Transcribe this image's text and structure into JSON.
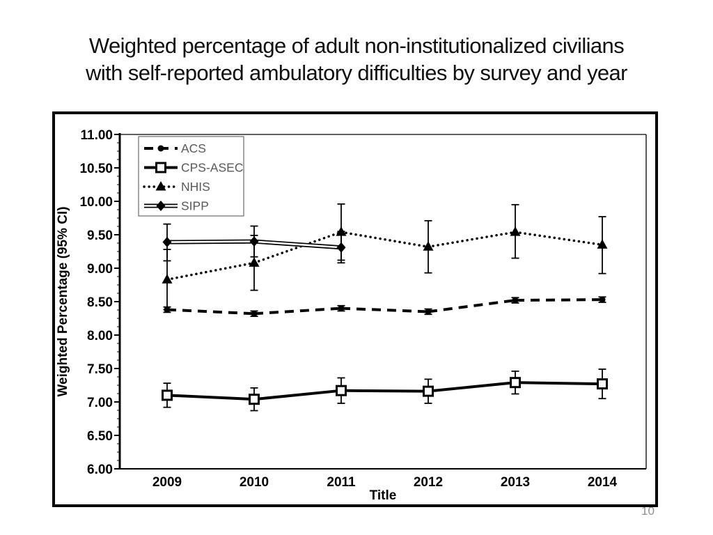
{
  "slide": {
    "title_line1": "Weighted percentage of adult non-institutionalized civilians",
    "title_line2": "with self-reported ambulatory difficulties by survey and year",
    "page_number": "10"
  },
  "chart_data": {
    "type": "line",
    "title": "",
    "xlabel": "Title",
    "ylabel": "Weighted Percentage (95% CI)",
    "categories": [
      "2009",
      "2010",
      "2011",
      "2012",
      "2013",
      "2014"
    ],
    "ylim": [
      6.0,
      11.0
    ],
    "ytick_major_step": 0.5,
    "ytick_minor_step": 0.125,
    "ytick_label_format_decimals": 2,
    "grid": false,
    "legend_position": "top-left-inside",
    "colors": {
      "line": "#000000",
      "legend_text": "#595959",
      "legend_border": "#7f7f7f"
    },
    "series": [
      {
        "name": "ACS",
        "line_style": "dashed",
        "marker": "circle",
        "values": [
          8.38,
          8.32,
          8.4,
          8.35,
          8.52,
          8.53
        ],
        "ci_low": [
          8.34,
          8.28,
          8.36,
          8.31,
          8.48,
          8.49
        ],
        "ci_high": [
          8.42,
          8.36,
          8.44,
          8.39,
          8.56,
          8.57
        ]
      },
      {
        "name": "CPS-ASEC",
        "line_style": "solid",
        "marker": "open-square",
        "values": [
          7.1,
          7.04,
          7.17,
          7.16,
          7.29,
          7.27
        ],
        "ci_low": [
          6.92,
          6.87,
          6.98,
          6.98,
          7.12,
          7.05
        ],
        "ci_high": [
          7.28,
          7.21,
          7.36,
          7.34,
          7.46,
          7.49
        ]
      },
      {
        "name": "NHIS",
        "line_style": "dotted",
        "marker": "triangle",
        "values": [
          8.83,
          9.08,
          9.54,
          9.32,
          9.54,
          9.35
        ],
        "ci_low": [
          8.38,
          8.67,
          9.12,
          8.93,
          9.15,
          8.92
        ],
        "ci_high": [
          9.28,
          9.49,
          9.96,
          9.71,
          9.95,
          9.77
        ]
      },
      {
        "name": "SIPP",
        "line_style": "double",
        "marker": "diamond",
        "values": [
          9.39,
          9.4,
          9.31,
          null,
          null,
          null
        ],
        "ci_low": [
          9.11,
          9.17,
          9.08,
          null,
          null,
          null
        ],
        "ci_high": [
          9.66,
          9.63,
          9.55,
          null,
          null,
          null
        ]
      }
    ]
  }
}
